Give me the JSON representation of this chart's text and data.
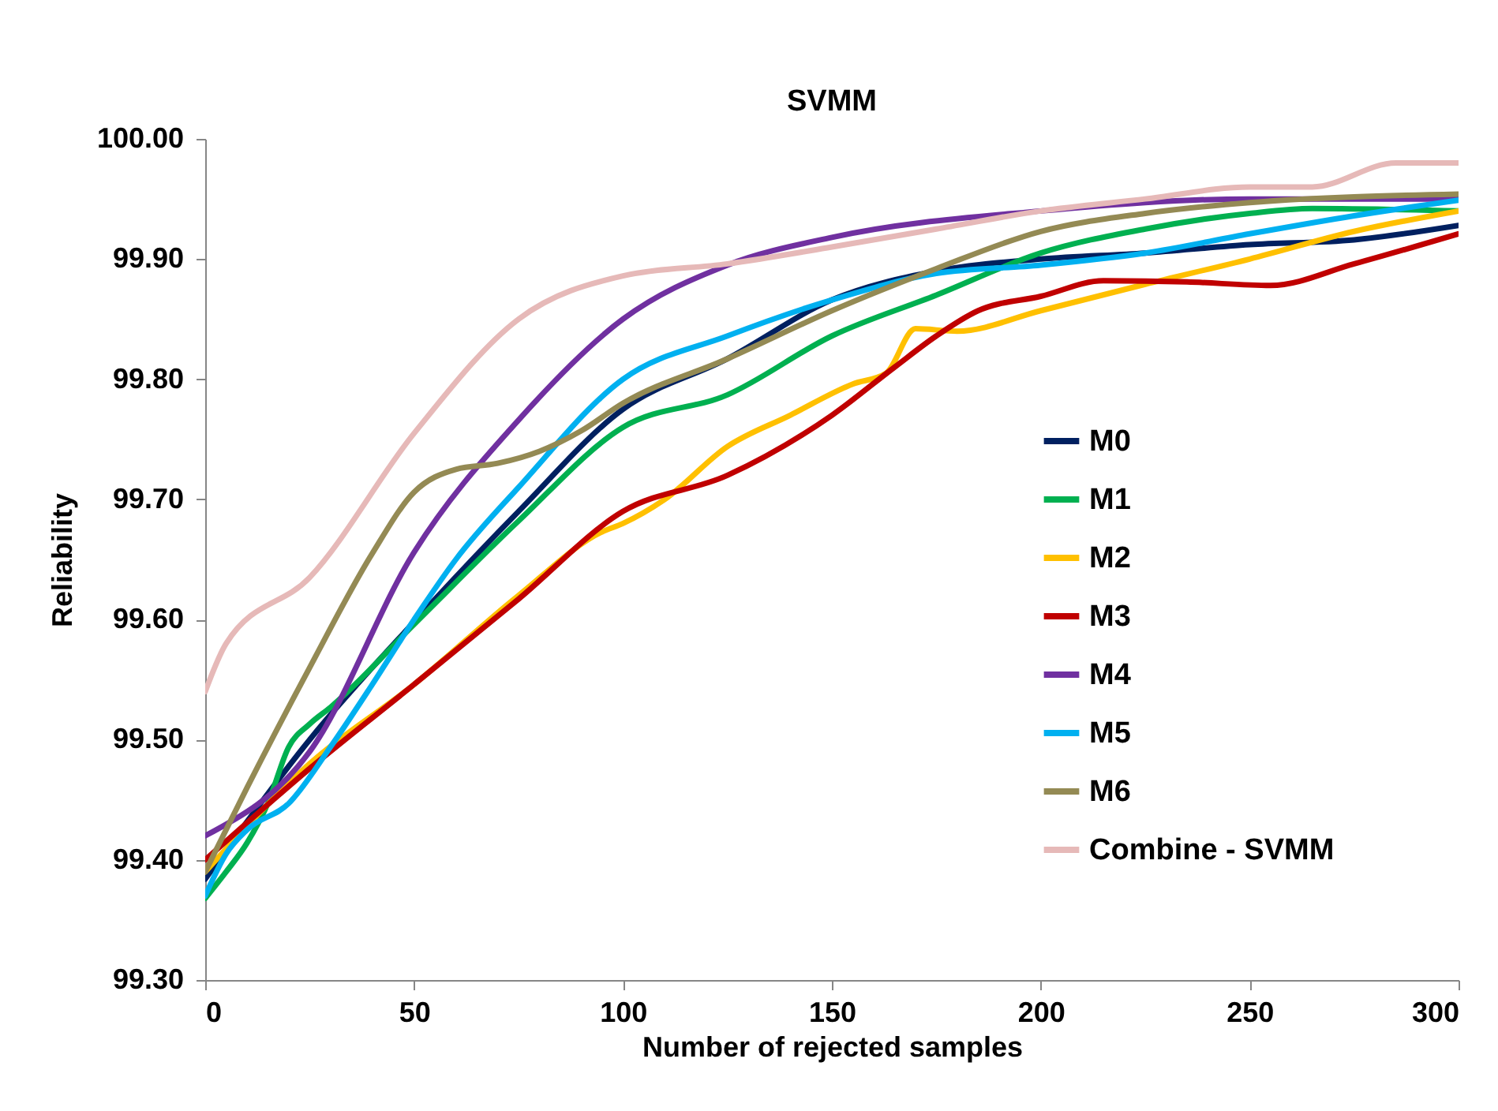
{
  "chart_data": {
    "type": "line",
    "title": "SVMM",
    "xlabel": "Number of rejected samples",
    "ylabel": "Reliability",
    "xlim": [
      0,
      300
    ],
    "xticks": [
      0,
      50,
      100,
      150,
      200,
      250,
      300
    ],
    "ylim": [
      99.3,
      100
    ],
    "yticks": [
      {
        "value": 99.3,
        "label": "99.30"
      },
      {
        "value": 99.4,
        "label": "99.40"
      },
      {
        "value": 99.5,
        "label": "99.50"
      },
      {
        "value": 99.6,
        "label": "99.60"
      },
      {
        "value": 99.7,
        "label": "99.70"
      },
      {
        "value": 99.8,
        "label": "99.80"
      },
      {
        "value": 99.9,
        "label": "99.90"
      },
      {
        "value": 100,
        "label": "100.00"
      }
    ],
    "grid": false,
    "legend": "right",
    "marker": "none",
    "line_style": "solid",
    "series": [
      {
        "name": "M0",
        "color": "#002060",
        "x": [
          0,
          25,
          50,
          75,
          100,
          125,
          150,
          175,
          200,
          225,
          250,
          275,
          300
        ],
        "values": [
          99.384,
          99.5,
          99.598,
          99.69,
          99.775,
          99.817,
          99.866,
          99.89,
          99.9,
          99.905,
          99.912,
          99.916,
          99.928
        ]
      },
      {
        "name": "M1",
        "color": "#00b050",
        "x": [
          0,
          5,
          10,
          15,
          20,
          25,
          30,
          50,
          75,
          100,
          125,
          150,
          175,
          200,
          225,
          250,
          265,
          300
        ],
        "values": [
          99.368,
          99.39,
          99.414,
          99.447,
          99.494,
          99.513,
          99.527,
          99.596,
          99.682,
          99.76,
          99.787,
          99.836,
          99.87,
          99.905,
          99.925,
          99.938,
          99.942,
          99.94
        ]
      },
      {
        "name": "M2",
        "color": "#ffc000",
        "x": [
          0,
          25,
          50,
          75,
          95,
          100,
          110,
          125,
          140,
          155,
          163,
          170,
          180,
          200,
          225,
          250,
          275,
          300
        ],
        "values": [
          99.39,
          99.48,
          99.546,
          99.62,
          99.673,
          99.68,
          99.7,
          99.744,
          99.77,
          99.796,
          99.805,
          99.842,
          99.84,
          99.857,
          99.879,
          99.9,
          99.923,
          99.94
        ]
      },
      {
        "name": "M3",
        "color": "#c00000",
        "x": [
          0,
          25,
          50,
          75,
          100,
          125,
          150,
          165,
          175,
          185,
          200,
          215,
          235,
          255,
          275,
          300
        ],
        "values": [
          99.4,
          99.476,
          99.546,
          99.617,
          99.69,
          99.72,
          99.77,
          99.81,
          99.836,
          99.857,
          99.869,
          99.882,
          99.881,
          99.878,
          99.896,
          99.921
        ]
      },
      {
        "name": "M4",
        "color": "#7030a0",
        "x": [
          0,
          25,
          50,
          75,
          100,
          125,
          150,
          200,
          250,
          300
        ],
        "values": [
          99.42,
          99.49,
          99.656,
          99.766,
          99.85,
          99.895,
          99.918,
          99.94,
          99.95,
          99.95
        ]
      },
      {
        "name": "M5",
        "color": "#00b0f0",
        "x": [
          0,
          5,
          10,
          20,
          30,
          40,
          50,
          60,
          75,
          100,
          125,
          150,
          175,
          200,
          225,
          250,
          275,
          300
        ],
        "values": [
          99.37,
          99.405,
          99.425,
          99.447,
          99.494,
          99.546,
          99.6,
          99.65,
          99.71,
          99.8,
          99.836,
          99.866,
          99.888,
          99.895,
          99.905,
          99.921,
          99.936,
          99.949
        ]
      },
      {
        "name": "M6",
        "color": "#948a54",
        "x": [
          0,
          10,
          25,
          40,
          50,
          60,
          70,
          80,
          90,
          100,
          125,
          150,
          175,
          200,
          225,
          250,
          300
        ],
        "values": [
          99.39,
          99.46,
          99.56,
          99.655,
          99.706,
          99.725,
          99.73,
          99.74,
          99.757,
          99.78,
          99.817,
          99.857,
          99.892,
          99.923,
          99.938,
          99.947,
          99.954
        ]
      },
      {
        "name": "Combine  -  SVMM",
        "color": "#e6b9b8",
        "x": [
          0,
          5,
          25,
          50,
          75,
          100,
          125,
          150,
          175,
          200,
          225,
          250,
          265,
          285,
          300
        ],
        "values": [
          99.54,
          99.58,
          99.635,
          99.755,
          99.85,
          99.886,
          99.896,
          99.91,
          99.925,
          99.94,
          99.95,
          99.96,
          99.96,
          99.98,
          99.98
        ]
      }
    ]
  }
}
